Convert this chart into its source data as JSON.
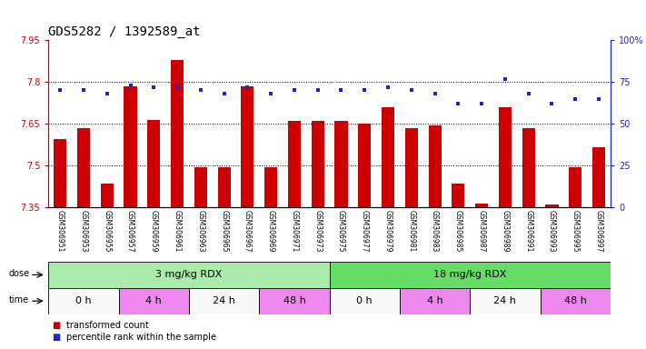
{
  "title": "GDS5282 / 1392589_at",
  "samples": [
    "GSM306951",
    "GSM306953",
    "GSM306955",
    "GSM306957",
    "GSM306959",
    "GSM306961",
    "GSM306963",
    "GSM306965",
    "GSM306967",
    "GSM306969",
    "GSM306971",
    "GSM306973",
    "GSM306975",
    "GSM306977",
    "GSM306979",
    "GSM306981",
    "GSM306983",
    "GSM306985",
    "GSM306987",
    "GSM306989",
    "GSM306991",
    "GSM306993",
    "GSM306995",
    "GSM306997"
  ],
  "bar_values": [
    7.595,
    7.635,
    7.435,
    7.785,
    7.665,
    7.88,
    7.495,
    7.495,
    7.785,
    7.495,
    7.66,
    7.66,
    7.66,
    7.65,
    7.71,
    7.635,
    7.645,
    7.435,
    7.365,
    7.71,
    7.635,
    7.36,
    7.495,
    7.565
  ],
  "percentile_values": [
    70,
    70,
    68,
    73,
    72,
    72,
    70,
    68,
    72,
    68,
    70,
    70,
    70,
    70,
    72,
    70,
    68,
    62,
    62,
    77,
    68,
    62,
    65,
    65
  ],
  "bar_color": "#cc0000",
  "percentile_color": "#2222cc",
  "ylim_left": [
    7.35,
    7.95
  ],
  "ylim_right": [
    0,
    100
  ],
  "yticks_left": [
    7.35,
    7.5,
    7.65,
    7.8,
    7.95
  ],
  "yticks_right": [
    0,
    25,
    50,
    75,
    100
  ],
  "grid_values": [
    7.5,
    7.65,
    7.8
  ],
  "dose_groups": [
    {
      "label": "3 mg/kg RDX",
      "start": 0,
      "end": 12,
      "color": "#aaeaaa"
    },
    {
      "label": "18 mg/kg RDX",
      "start": 12,
      "end": 24,
      "color": "#66dd66"
    }
  ],
  "time_groups": [
    {
      "label": "0 h",
      "start": 0,
      "end": 3,
      "color": "#f8f8f8"
    },
    {
      "label": "4 h",
      "start": 3,
      "end": 6,
      "color": "#ee88ee"
    },
    {
      "label": "24 h",
      "start": 6,
      "end": 9,
      "color": "#f8f8f8"
    },
    {
      "label": "48 h",
      "start": 9,
      "end": 12,
      "color": "#ee88ee"
    },
    {
      "label": "0 h",
      "start": 12,
      "end": 15,
      "color": "#f8f8f8"
    },
    {
      "label": "4 h",
      "start": 15,
      "end": 18,
      "color": "#ee88ee"
    },
    {
      "label": "24 h",
      "start": 18,
      "end": 21,
      "color": "#f8f8f8"
    },
    {
      "label": "48 h",
      "start": 21,
      "end": 24,
      "color": "#ee88ee"
    }
  ],
  "legend_items": [
    {
      "label": "transformed count",
      "color": "#cc0000"
    },
    {
      "label": "percentile rank within the sample",
      "color": "#2222cc"
    }
  ],
  "bg_color": "#ffffff",
  "title_fontsize": 10,
  "tick_fontsize": 7,
  "sample_fontsize": 5.5,
  "row_label_fontsize": 7,
  "row_content_fontsize": 8
}
